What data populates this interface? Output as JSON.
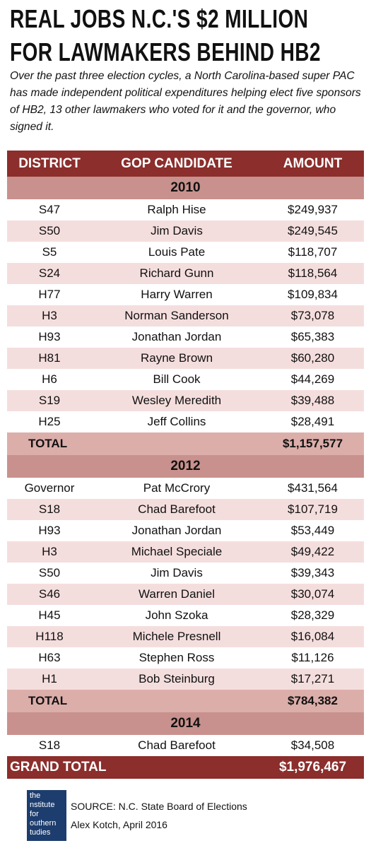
{
  "header": {
    "title_lines": [
      "REAL JOBS N.C.'S $2 MILLION",
      "FOR LAWMAKERS BEHIND HB2"
    ],
    "subtitle": "Over the past three election cycles, a North Carolina-based super PAC has made independent political expenditures helping elect five sponsors of HB2, 13 other lawmakers who voted for it and the governor, who signed it."
  },
  "table": {
    "columns": [
      "DISTRICT",
      "GOP CANDIDATE",
      "AMOUNT"
    ],
    "sections": [
      {
        "year": "2010",
        "rows": [
          [
            "S47",
            "Ralph Hise",
            "$249,937"
          ],
          [
            "S50",
            "Jim Davis",
            "$249,545"
          ],
          [
            "S5",
            "Louis Pate",
            "$118,707"
          ],
          [
            "S24",
            "Richard Gunn",
            "$118,564"
          ],
          [
            "H77",
            "Harry Warren",
            "$109,834"
          ],
          [
            "H3",
            "Norman Sanderson",
            "$73,078"
          ],
          [
            "H93",
            "Jonathan Jordan",
            "$65,383"
          ],
          [
            "H81",
            "Rayne Brown",
            "$60,280"
          ],
          [
            "H6",
            "Bill Cook",
            "$44,269"
          ],
          [
            "S19",
            "Wesley Meredith",
            "$39,488"
          ],
          [
            "H25",
            "Jeff Collins",
            "$28,491"
          ]
        ],
        "total": {
          "label": "TOTAL",
          "amount": "$1,157,577"
        }
      },
      {
        "year": "2012",
        "rows": [
          [
            "Governor",
            "Pat McCrory",
            "$431,564"
          ],
          [
            "S18",
            "Chad Barefoot",
            "$107,719"
          ],
          [
            "H93",
            "Jonathan Jordan",
            "$53,449"
          ],
          [
            "H3",
            "Michael Speciale",
            "$49,422"
          ],
          [
            "S50",
            "Jim Davis",
            "$39,343"
          ],
          [
            "S46",
            "Warren Daniel",
            "$30,074"
          ],
          [
            "H45",
            "John Szoka",
            "$28,329"
          ],
          [
            "H118",
            "Michele Presnell",
            "$16,084"
          ],
          [
            "H63",
            "Stephen Ross",
            "$11,126"
          ],
          [
            "H1",
            "Bob Steinburg",
            "$17,271"
          ]
        ],
        "total": {
          "label": "TOTAL",
          "amount": "$784,382"
        }
      },
      {
        "year": "2014",
        "rows": [
          [
            "S18",
            "Chad Barefoot",
            "$34,508"
          ]
        ]
      }
    ],
    "grand_total": {
      "label": "GRAND TOTAL",
      "amount": "$1,976,467"
    }
  },
  "footer": {
    "logo": [
      "the",
      "nstitute",
      "for",
      "outhern",
      "tudies"
    ],
    "source": "SOURCE: N.C. State Board of Elections",
    "credit": "Alex Kotch, April 2016"
  }
}
